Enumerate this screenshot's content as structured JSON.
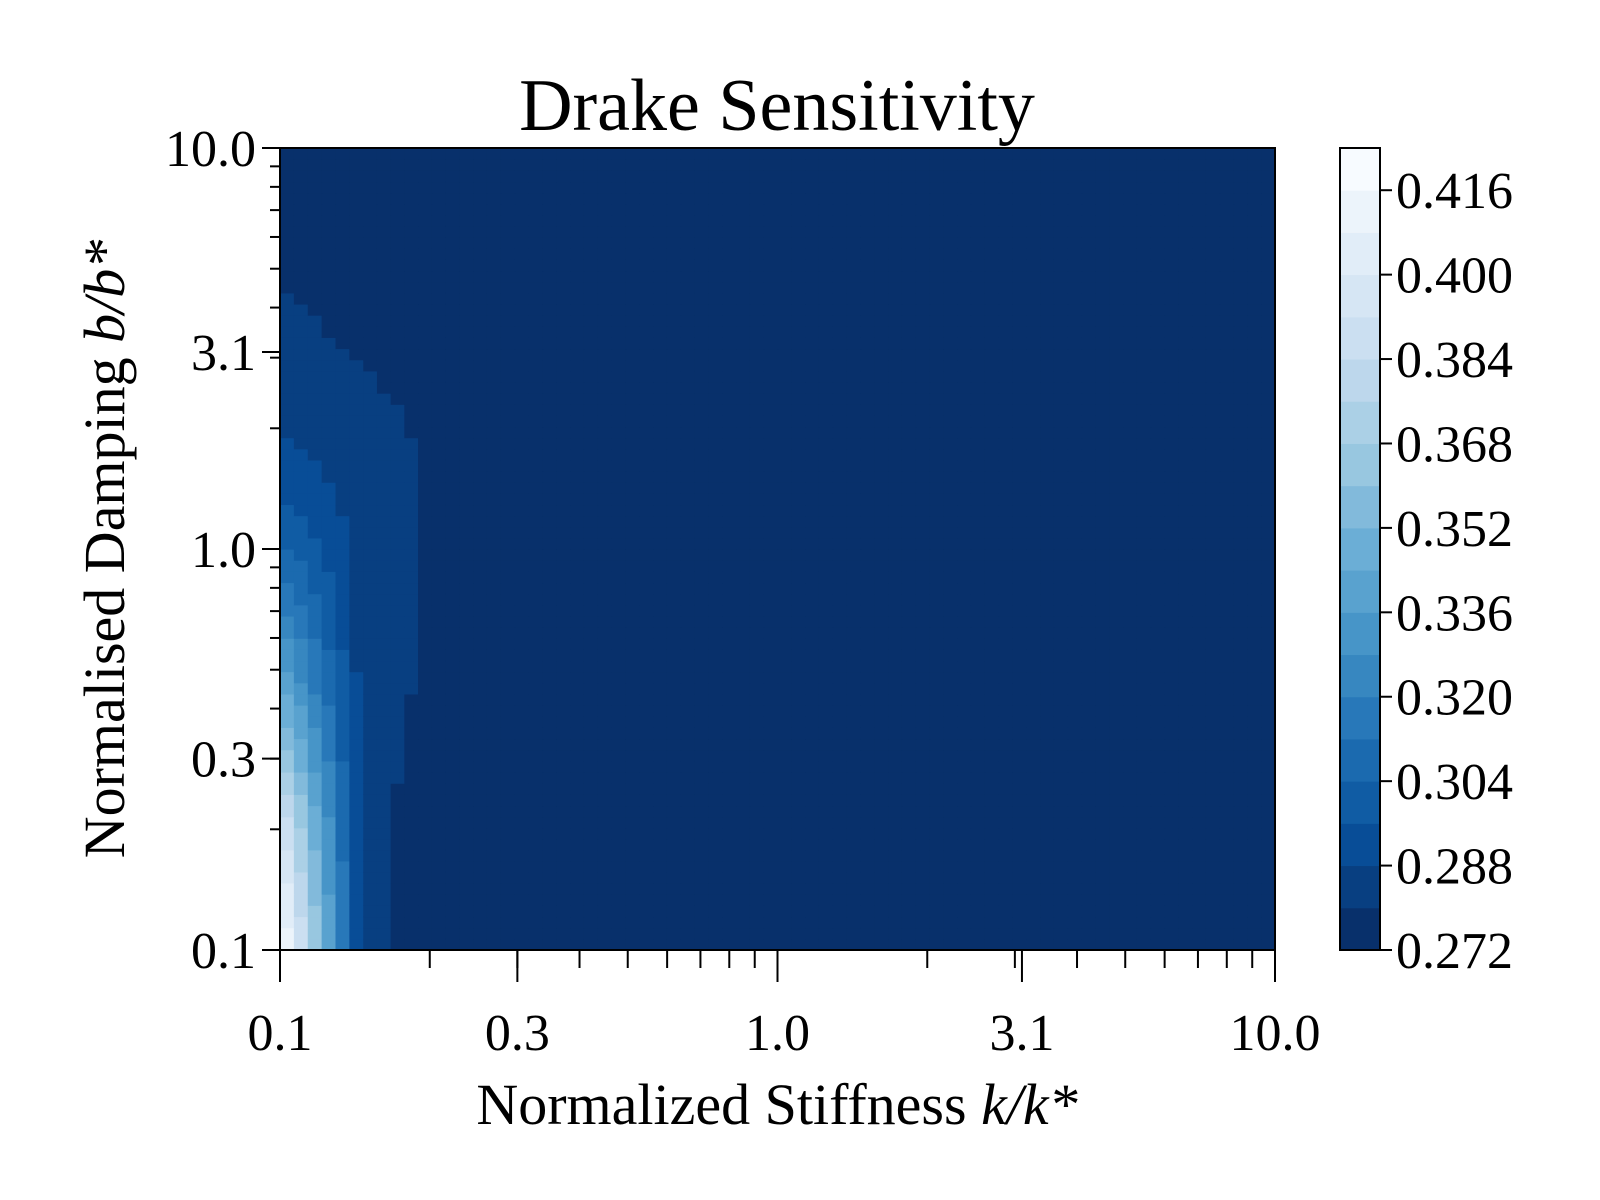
{
  "chart_data": {
    "type": "heatmap",
    "title": "Drake Sensitivity",
    "xlabel_text": "Normalized Stiffness ",
    "xlabel_math": "k/k*",
    "ylabel_text": "Normalised Damping ",
    "ylabel_math": "b/b*",
    "x_scale": "log",
    "y_scale": "log",
    "xlim": [
      0.1,
      10.0
    ],
    "ylim": [
      0.1,
      10.0
    ],
    "x_ticks": [
      0.1,
      0.3,
      1.0,
      3.1,
      10.0
    ],
    "x_tick_labels": [
      "0.1",
      "0.3",
      "1.0",
      "3.1",
      "10.0"
    ],
    "y_ticks": [
      0.1,
      0.3,
      1.0,
      3.1,
      10.0
    ],
    "y_tick_labels": [
      "0.1",
      "0.3",
      "1.0",
      "3.1",
      "10.0"
    ],
    "colormap": "Blues_r",
    "colorbar": {
      "min": 0.272,
      "max": 0.424,
      "levels": [
        0.272,
        0.28,
        0.288,
        0.296,
        0.304,
        0.312,
        0.32,
        0.328,
        0.336,
        0.344,
        0.352,
        0.36,
        0.368,
        0.376,
        0.384,
        0.392,
        0.4,
        0.408,
        0.416,
        0.424
      ],
      "ticks": [
        0.272,
        0.288,
        0.304,
        0.32,
        0.336,
        0.352,
        0.368,
        0.384,
        0.4,
        0.416
      ],
      "tick_labels": [
        "0.272",
        "0.288",
        "0.304",
        "0.320",
        "0.336",
        "0.352",
        "0.368",
        "0.384",
        "0.400",
        "0.416"
      ],
      "placement": "right"
    },
    "x_grid": [
      0.1,
      0.147,
      0.215,
      0.316,
      0.464,
      0.681,
      1.0,
      1.468,
      2.154,
      3.162,
      4.642,
      6.813,
      10.0
    ],
    "y_grid": [
      0.1,
      0.147,
      0.215,
      0.316,
      0.464,
      0.681,
      1.0,
      1.468,
      2.154,
      3.162,
      4.642,
      6.813,
      10.0
    ],
    "z": [
      [
        0.424,
        0.281,
        0.278,
        0.272,
        0.272,
        0.272,
        0.272,
        0.272,
        0.272,
        0.272,
        0.272,
        0.272,
        0.272
      ],
      [
        0.412,
        0.281,
        0.278,
        0.272,
        0.272,
        0.272,
        0.272,
        0.272,
        0.272,
        0.272,
        0.272,
        0.272,
        0.272
      ],
      [
        0.394,
        0.281,
        0.278,
        0.272,
        0.272,
        0.272,
        0.272,
        0.272,
        0.272,
        0.272,
        0.272,
        0.272,
        0.272
      ],
      [
        0.368,
        0.282,
        0.278,
        0.272,
        0.272,
        0.272,
        0.272,
        0.272,
        0.272,
        0.272,
        0.272,
        0.272,
        0.272
      ],
      [
        0.344,
        0.283,
        0.278,
        0.273,
        0.272,
        0.272,
        0.272,
        0.272,
        0.272,
        0.272,
        0.272,
        0.272,
        0.272
      ],
      [
        0.324,
        0.284,
        0.278,
        0.275,
        0.272,
        0.272,
        0.272,
        0.272,
        0.272,
        0.272,
        0.272,
        0.272,
        0.272
      ],
      [
        0.306,
        0.285,
        0.278,
        0.276,
        0.272,
        0.272,
        0.272,
        0.272,
        0.272,
        0.272,
        0.272,
        0.272,
        0.272
      ],
      [
        0.293,
        0.284,
        0.278,
        0.276,
        0.272,
        0.272,
        0.272,
        0.272,
        0.272,
        0.272,
        0.272,
        0.272,
        0.272
      ],
      [
        0.287,
        0.282,
        0.278,
        0.275,
        0.272,
        0.272,
        0.272,
        0.272,
        0.272,
        0.272,
        0.272,
        0.272,
        0.272
      ],
      [
        0.283,
        0.279,
        0.277,
        0.274,
        0.272,
        0.272,
        0.272,
        0.272,
        0.272,
        0.272,
        0.272,
        0.272,
        0.272
      ],
      [
        0.28,
        0.276,
        0.276,
        0.274,
        0.272,
        0.272,
        0.272,
        0.272,
        0.272,
        0.272,
        0.272,
        0.272,
        0.272
      ],
      [
        0.277,
        0.275,
        0.276,
        0.274,
        0.272,
        0.272,
        0.272,
        0.272,
        0.272,
        0.272,
        0.272,
        0.272,
        0.272
      ],
      [
        0.276,
        0.275,
        0.276,
        0.274,
        0.272,
        0.272,
        0.272,
        0.272,
        0.272,
        0.272,
        0.272,
        0.272,
        0.272
      ]
    ]
  }
}
